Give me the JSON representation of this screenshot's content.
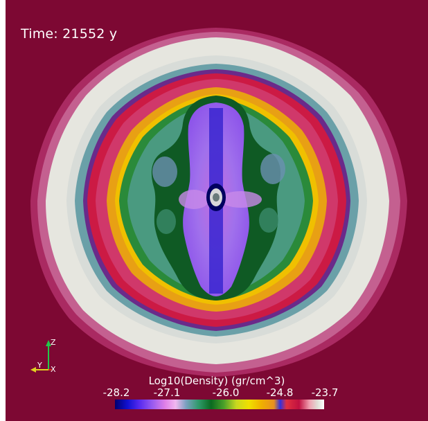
{
  "time_text": "Time: 21552 y",
  "colorbar": {
    "title": "Log10(Density) (gr/cm^3)",
    "ticks": [
      "-28.2",
      "-27.1",
      "-26.0",
      "-24.8",
      "-23.7"
    ]
  },
  "axes": {
    "z": "Z",
    "y": "Y",
    "x": "X"
  },
  "colors": {
    "background": "#7d0833",
    "outer_shell": "#e6e6df",
    "inner_cavity": "#9a5cf0",
    "axis_z": "#22c84a",
    "axis_y": "#e0d020",
    "axis_x": "#d03020"
  }
}
